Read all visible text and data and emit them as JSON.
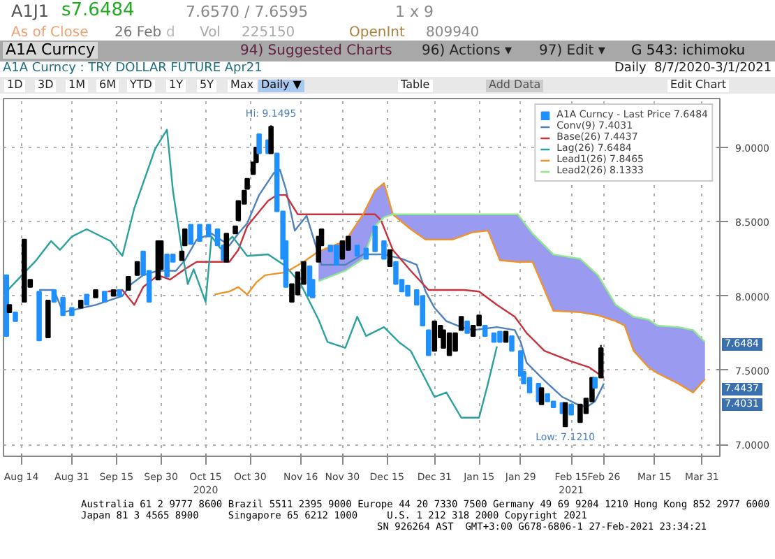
{
  "chart_data": {
    "type": "candlestick",
    "title": "A1A Curncy : TRY DOLLAR FUTURE Apr21",
    "subtitle": "Daily  8/7/2020-3/1/2021",
    "xlim": [
      "2020-08-08",
      "2021-04-06"
    ],
    "ylim": [
      6.92,
      9.33
    ],
    "xticks": [
      {
        "value": "2020-08-14",
        "label": "Aug 14"
      },
      {
        "value": "2020-08-31",
        "label": "Aug 31"
      },
      {
        "value": "2020-09-15",
        "label": "Sep 15"
      },
      {
        "value": "2020-09-30",
        "label": "Sep 30"
      },
      {
        "value": "2020-10-15",
        "label": "Oct 15\n2020"
      },
      {
        "value": "2020-10-30",
        "label": "Oct 30"
      },
      {
        "value": "2020-11-16",
        "label": "Nov 16"
      },
      {
        "value": "2020-11-30",
        "label": "Nov 30"
      },
      {
        "value": "2020-12-15",
        "label": "Dec 15"
      },
      {
        "value": "2020-12-31",
        "label": "Dec 31"
      },
      {
        "value": "2021-01-15",
        "label": "Jan 15"
      },
      {
        "value": "2021-01-29",
        "label": "Jan 29"
      },
      {
        "value": "2021-02-15",
        "label": "Feb 15\n2021"
      },
      {
        "value": "2021-02-26",
        "label": "Feb 26"
      },
      {
        "value": "2021-03-15",
        "label": "Mar 15"
      },
      {
        "value": "2021-03-31",
        "label": "Mar 31"
      }
    ],
    "yticks": [
      {
        "value": 7,
        "label": "7.0000"
      },
      {
        "value": 7.5,
        "label": "7.5000"
      },
      {
        "value": 8,
        "label": "8.0000"
      },
      {
        "value": 8.5,
        "label": "8.5000"
      },
      {
        "value": 9,
        "label": "9.0000"
      }
    ],
    "grid": true,
    "legend": "top right",
    "series": [
      {
        "type": "candlestick",
        "name": "A1A Curncy - Last Price 7.6484",
        "x": [
          "2020-08-09",
          "2020-08-10",
          "2020-08-12",
          "2020-08-15",
          "2020-08-17",
          "2020-08-20",
          "2020-08-23",
          "2020-08-25",
          "2020-08-28",
          "2020-08-31",
          "2020-09-03",
          "2020-09-05",
          "2020-09-08",
          "2020-09-11",
          "2020-09-14",
          "2020-09-16",
          "2020-09-19",
          "2020-09-22",
          "2020-09-24",
          "2020-09-26",
          "2020-09-29",
          "2020-09-30",
          "2020-10-02",
          "2020-10-04",
          "2020-10-07",
          "2020-10-08",
          "2020-10-10",
          "2020-10-13",
          "2020-10-16",
          "2020-10-19",
          "2020-10-21",
          "2020-10-22",
          "2020-10-25",
          "2020-10-26",
          "2020-10-28",
          "2020-10-29",
          "2020-10-31",
          "2020-11-01",
          "2020-11-02",
          "2020-11-05",
          "2020-11-06",
          "2020-11-08",
          "2020-11-10",
          "2020-11-11",
          "2020-11-13",
          "2020-11-15",
          "2020-11-17",
          "2020-11-19",
          "2020-11-20",
          "2020-11-22",
          "2020-11-23",
          "2020-11-26",
          "2020-11-28",
          "2020-11-30",
          "2020-12-02",
          "2020-12-05",
          "2020-12-08",
          "2020-12-11",
          "2020-12-14",
          "2020-12-16",
          "2020-12-18",
          "2020-12-20",
          "2020-12-22",
          "2020-12-25",
          "2020-12-27",
          "2020-12-29",
          "2020-12-31",
          "2021-01-02",
          "2021-01-03",
          "2021-01-05",
          "2021-01-07",
          "2021-01-09",
          "2021-01-11",
          "2021-01-13",
          "2021-01-15",
          "2021-01-17",
          "2021-01-20",
          "2021-01-22",
          "2021-01-24",
          "2021-01-26",
          "2021-01-29",
          "2021-01-30",
          "2021-02-01",
          "2021-02-04",
          "2021-02-05",
          "2021-02-07",
          "2021-02-09",
          "2021-02-12",
          "2021-02-13",
          "2021-02-15",
          "2021-02-18",
          "2021-02-20",
          "2021-02-22",
          "2021-02-23",
          "2021-02-25"
        ],
        "ohlc": [
          [
            8.14,
            8.14,
            7.73,
            7.73
          ],
          [
            7.89,
            7.94,
            7.89,
            7.94
          ],
          [
            7.89,
            7.89,
            7.83,
            7.83
          ],
          [
            7.96,
            8.38,
            7.96,
            8.38
          ],
          [
            8.06,
            8.11,
            8.06,
            8.11
          ],
          [
            8.03,
            8.03,
            7.7,
            7.7
          ],
          [
            7.72,
            7.97,
            7.72,
            7.97
          ],
          [
            8.04,
            8.04,
            7.96,
            7.96
          ],
          [
            7.99,
            7.99,
            7.87,
            7.87
          ],
          [
            7.92,
            7.92,
            7.87,
            7.87
          ],
          [
            7.92,
            7.97,
            7.92,
            7.97
          ],
          [
            8.01,
            8.01,
            7.94,
            7.94
          ],
          [
            7.99,
            8.04,
            7.99,
            8.04
          ],
          [
            8.03,
            8.03,
            7.96,
            7.96
          ],
          [
            8.0,
            8.04,
            8.0,
            8.04
          ],
          [
            8.04,
            8.04,
            8.0,
            8.0
          ],
          [
            8.04,
            8.13,
            8.04,
            8.13
          ],
          [
            8.14,
            8.23,
            8.14,
            8.23
          ],
          [
            8.3,
            8.3,
            8.14,
            8.14
          ],
          [
            8.17,
            8.17,
            7.96,
            7.96
          ],
          [
            8.11,
            8.37,
            8.11,
            8.37
          ],
          [
            8.18,
            8.37,
            8.18,
            8.37
          ],
          [
            8.28,
            8.28,
            8.13,
            8.13
          ],
          [
            8.28,
            8.28,
            8.23,
            8.23
          ],
          [
            8.24,
            8.3,
            8.24,
            8.3
          ],
          [
            8.34,
            8.45,
            8.34,
            8.45
          ],
          [
            8.48,
            8.48,
            8.35,
            8.35
          ],
          [
            8.48,
            8.48,
            8.37,
            8.37
          ],
          [
            8.48,
            8.48,
            8.4,
            8.4
          ],
          [
            8.45,
            8.45,
            8.34,
            8.34
          ],
          [
            8.34,
            8.34,
            8.24,
            8.24
          ],
          [
            8.23,
            8.42,
            8.23,
            8.42
          ],
          [
            8.42,
            8.47,
            8.42,
            8.47
          ],
          [
            8.51,
            8.64,
            8.51,
            8.64
          ],
          [
            8.62,
            8.71,
            8.62,
            8.71
          ],
          [
            8.72,
            8.79,
            8.72,
            8.79
          ],
          [
            8.82,
            8.9,
            8.82,
            8.9
          ],
          [
            8.9,
            9.0,
            8.9,
            9.0
          ],
          [
            9.09,
            9.09,
            8.96,
            8.96
          ],
          [
            9.05,
            9.05,
            8.96,
            8.96
          ],
          [
            8.96,
            9.1495,
            8.96,
            9.14
          ],
          [
            8.96,
            8.96,
            8.57,
            8.57
          ],
          [
            8.57,
            8.57,
            8.25,
            8.25
          ],
          [
            8.37,
            8.37,
            8.06,
            8.06
          ],
          [
            7.96,
            8.08,
            7.96,
            8.08
          ],
          [
            8.01,
            8.16,
            8.01,
            8.16
          ],
          [
            8.08,
            8.23,
            8.08,
            8.23
          ],
          [
            8.2,
            8.2,
            8.0,
            8.0
          ],
          [
            8.11,
            8.11,
            7.99,
            7.99
          ],
          [
            8.23,
            8.4,
            8.23,
            8.4
          ],
          [
            8.34,
            8.45,
            8.34,
            8.45
          ],
          [
            8.34,
            8.34,
            8.3,
            8.3
          ],
          [
            8.34,
            8.34,
            8.21,
            8.21
          ],
          [
            8.25,
            8.37,
            8.25,
            8.37
          ],
          [
            8.31,
            8.4,
            8.31,
            8.4
          ],
          [
            8.34,
            8.34,
            8.27,
            8.27
          ],
          [
            8.32,
            8.32,
            8.25,
            8.25
          ],
          [
            8.47,
            8.47,
            8.3,
            8.3
          ],
          [
            8.37,
            8.37,
            8.25,
            8.25
          ],
          [
            8.2,
            8.31,
            8.2,
            8.31
          ],
          [
            8.23,
            8.23,
            8.08,
            8.08
          ],
          [
            8.11,
            8.11,
            8.03,
            8.03
          ],
          [
            8.07,
            8.07,
            8.0,
            8.0
          ],
          [
            8.04,
            8.04,
            7.94,
            7.94
          ],
          [
            8.0,
            8.0,
            7.8,
            7.8
          ],
          [
            7.77,
            7.77,
            7.6,
            7.6
          ],
          [
            7.63,
            7.83,
            7.63,
            7.83
          ],
          [
            7.72,
            7.8,
            7.72,
            7.8
          ],
          [
            7.65,
            7.77,
            7.65,
            7.77
          ],
          [
            7.6,
            7.75,
            7.6,
            7.75
          ],
          [
            7.63,
            7.75,
            7.63,
            7.75
          ],
          [
            7.77,
            7.86,
            7.77,
            7.86
          ],
          [
            7.83,
            7.83,
            7.75,
            7.75
          ],
          [
            7.73,
            7.8,
            7.73,
            7.8
          ],
          [
            7.8,
            7.87,
            7.8,
            7.87
          ],
          [
            7.8,
            7.8,
            7.73,
            7.73
          ],
          [
            7.75,
            7.75,
            7.69,
            7.69
          ],
          [
            7.76,
            7.76,
            7.69,
            7.69
          ],
          [
            7.69,
            7.76,
            7.69,
            7.76
          ],
          [
            7.73,
            7.73,
            7.63,
            7.63
          ],
          [
            7.63,
            7.63,
            7.46,
            7.46
          ],
          [
            7.49,
            7.49,
            7.41,
            7.41
          ],
          [
            7.45,
            7.45,
            7.35,
            7.35
          ],
          [
            7.41,
            7.41,
            7.29,
            7.29
          ],
          [
            7.27,
            7.38,
            7.27,
            7.38
          ],
          [
            7.34,
            7.34,
            7.29,
            7.29
          ],
          [
            7.29,
            7.29,
            7.25,
            7.25
          ],
          [
            7.28,
            7.28,
            7.21,
            7.21
          ],
          [
            7.121,
            7.28,
            7.121,
            7.28
          ],
          [
            7.27,
            7.27,
            7.2,
            7.2
          ],
          [
            7.15,
            7.27,
            7.15,
            7.27
          ],
          [
            7.21,
            7.31,
            7.21,
            7.31
          ],
          [
            7.29,
            7.45,
            7.29,
            7.45
          ],
          [
            7.45,
            7.45,
            7.38,
            7.38
          ],
          [
            7.45,
            7.67,
            7.45,
            7.6484
          ]
        ],
        "colors": [
          "#1e90ff",
          "#000000",
          "#1e90ff",
          "#000000",
          "#000000",
          "#1e90ff",
          "#000000",
          "#1e90ff",
          "#1e90ff",
          "#1e90ff",
          "#000000",
          "#1e90ff",
          "#000000",
          "#1e90ff",
          "#000000",
          "#1e90ff",
          "#000000",
          "#000000",
          "#1e90ff",
          "#1e90ff",
          "#000000",
          "#000000",
          "#1e90ff",
          "#1e90ff",
          "#000000",
          "#000000",
          "#1e90ff",
          "#1e90ff",
          "#1e90ff",
          "#1e90ff",
          "#1e90ff",
          "#000000",
          "#000000",
          "#000000",
          "#000000",
          "#000000",
          "#000000",
          "#000000",
          "#1e90ff",
          "#1e90ff",
          "#000000",
          "#1e90ff",
          "#1e90ff",
          "#1e90ff",
          "#000000",
          "#000000",
          "#000000",
          "#1e90ff",
          "#1e90ff",
          "#000000",
          "#000000",
          "#1e90ff",
          "#1e90ff",
          "#000000",
          "#000000",
          "#1e90ff",
          "#1e90ff",
          "#1e90ff",
          "#1e90ff",
          "#000000",
          "#1e90ff",
          "#1e90ff",
          "#1e90ff",
          "#1e90ff",
          "#1e90ff",
          "#1e90ff",
          "#000000",
          "#000000",
          "#000000",
          "#000000",
          "#000000",
          "#000000",
          "#1e90ff",
          "#000000",
          "#000000",
          "#1e90ff",
          "#1e90ff",
          "#1e90ff",
          "#000000",
          "#1e90ff",
          "#1e90ff",
          "#1e90ff",
          "#1e90ff",
          "#1e90ff",
          "#000000",
          "#1e90ff",
          "#1e90ff",
          "#1e90ff",
          "#000000",
          "#1e90ff",
          "#000000",
          "#000000",
          "#000000",
          "#1e90ff",
          "#000000"
        ]
      },
      {
        "type": "line",
        "name": "Conv(9) 7.4031",
        "color": "#4f81bd",
        "x": [
          "2020-08-20",
          "2020-08-25",
          "2020-08-28",
          "2020-09-08",
          "2020-09-17",
          "2020-09-20",
          "2020-09-24",
          "2020-09-29",
          "2020-10-05",
          "2020-10-08",
          "2020-10-12",
          "2020-10-17",
          "2020-10-23",
          "2020-10-26",
          "2020-10-29",
          "2020-11-02",
          "2020-11-07",
          "2020-11-09",
          "2020-11-11",
          "2020-11-14",
          "2020-11-18",
          "2020-11-23",
          "2020-12-01",
          "2020-12-07",
          "2020-12-14",
          "2020-12-20",
          "2020-12-25",
          "2020-12-28",
          "2020-12-31",
          "2021-01-04",
          "2021-01-09",
          "2021-01-13",
          "2021-01-21",
          "2021-01-27",
          "2021-01-29",
          "2021-01-31",
          "2021-02-06",
          "2021-02-12",
          "2021-02-17",
          "2021-02-20",
          "2021-02-23",
          "2021-02-26"
        ],
        "values": [
          8.04,
          8.04,
          7.89,
          7.94,
          8.0,
          8.08,
          8.14,
          8.17,
          8.17,
          8.24,
          8.38,
          8.42,
          8.34,
          8.42,
          8.49,
          8.68,
          8.83,
          8.85,
          8.72,
          8.44,
          8.54,
          8.21,
          8.21,
          8.28,
          8.28,
          8.25,
          8.21,
          8.03,
          7.92,
          7.83,
          7.79,
          7.77,
          7.79,
          7.77,
          7.69,
          7.55,
          7.43,
          7.32,
          7.27,
          7.25,
          7.29,
          7.41
        ]
      },
      {
        "type": "line",
        "name": "Base(26) 7.4437",
        "color": "#c8323c",
        "x": [
          "2020-09-12",
          "2020-09-17",
          "2020-09-21",
          "2020-09-24",
          "2020-09-29",
          "2020-10-03",
          "2020-10-08",
          "2020-10-12",
          "2020-10-23",
          "2020-10-26",
          "2020-10-29",
          "2020-11-05",
          "2020-11-08",
          "2020-11-11",
          "2020-11-15",
          "2020-11-22",
          "2020-12-11",
          "2020-12-13",
          "2020-12-17",
          "2020-12-23",
          "2020-12-29",
          "2021-01-10",
          "2021-01-15",
          "2021-01-21",
          "2021-01-27",
          "2021-01-31",
          "2021-02-06",
          "2021-02-15",
          "2021-02-21",
          "2021-02-26"
        ],
        "values": [
          8.03,
          8.04,
          7.94,
          8.06,
          8.14,
          8.11,
          8.18,
          8.23,
          8.23,
          8.31,
          8.47,
          8.64,
          8.68,
          8.68,
          8.55,
          8.55,
          8.55,
          8.51,
          8.31,
          8.17,
          8.04,
          8.04,
          8.03,
          7.94,
          7.86,
          7.75,
          7.63,
          7.56,
          7.52,
          7.45
        ]
      },
      {
        "type": "line",
        "name": "Lag(26) 7.6484",
        "color": "#2aa19c",
        "x": [
          "2020-08-09",
          "2020-08-19",
          "2020-08-24",
          "2020-08-27",
          "2020-08-31",
          "2020-09-05",
          "2020-09-13",
          "2020-09-17",
          "2020-09-21",
          "2020-09-28",
          "2020-10-02",
          "2020-10-04",
          "2020-10-07",
          "2020-10-09",
          "2020-10-11",
          "2020-10-15",
          "2020-10-17",
          "2020-10-20",
          "2020-10-24",
          "2020-10-29",
          "2020-11-05",
          "2020-11-11",
          "2020-11-16",
          "2020-11-22",
          "2020-11-25",
          "2020-12-01",
          "2020-12-05",
          "2020-12-08",
          "2020-12-14",
          "2020-12-19",
          "2020-12-23",
          "2020-12-31",
          "2021-01-04",
          "2021-01-09",
          "2021-01-15",
          "2021-01-18",
          "2021-01-21"
        ],
        "values": [
          8.03,
          8.24,
          8.37,
          8.31,
          8.4,
          8.45,
          8.37,
          8.27,
          8.59,
          8.99,
          9.12,
          8.71,
          8.31,
          8.08,
          8.18,
          7.96,
          8.4,
          8.32,
          8.4,
          8.27,
          8.28,
          8.2,
          8.08,
          7.84,
          7.69,
          7.65,
          7.86,
          7.73,
          7.79,
          7.69,
          7.63,
          7.32,
          7.35,
          7.18,
          7.18,
          7.41,
          7.66
        ]
      },
      {
        "type": "line",
        "name": "Lead1(26) 7.8465",
        "color": "#f0922b",
        "x": [
          "2020-10-18",
          "2020-10-23",
          "2020-10-26",
          "2020-10-29",
          "2020-11-01",
          "2020-11-04",
          "2020-11-11",
          "2020-11-17",
          "2020-11-22",
          "2020-12-01",
          "2020-12-07",
          "2020-12-11",
          "2020-12-14",
          "2020-12-17",
          "2020-12-23",
          "2020-12-28",
          "2021-01-06",
          "2021-01-13",
          "2021-01-18",
          "2021-01-22",
          "2021-01-28",
          "2021-02-02",
          "2021-02-09",
          "2021-02-18",
          "2021-02-24",
          "2021-03-02",
          "2021-03-05",
          "2021-03-08",
          "2021-03-13",
          "2021-03-16",
          "2021-03-23",
          "2021-03-28",
          "2021-04-01"
        ],
        "values": [
          8.01,
          8.03,
          8.06,
          8.01,
          8.09,
          8.14,
          8.16,
          8.23,
          8.3,
          8.37,
          8.55,
          8.71,
          8.76,
          8.55,
          8.45,
          8.38,
          8.38,
          8.43,
          8.44,
          8.24,
          8.23,
          8.23,
          7.9,
          7.89,
          7.87,
          7.83,
          7.8,
          7.63,
          7.52,
          7.48,
          7.41,
          7.35,
          7.44
        ]
      },
      {
        "type": "line",
        "name": "Lead2(26) 8.1333",
        "color": "#90e890",
        "lower": [
          8.3,
          8.37,
          8.55,
          8.71,
          8.76,
          8.55,
          8.45,
          8.38,
          8.38,
          8.43,
          8.44,
          8.24,
          8.23,
          8.23,
          7.9,
          7.89,
          7.87,
          7.83,
          7.8,
          7.63,
          7.52,
          7.48,
          7.41,
          7.35,
          7.44
        ],
        "upper": [
          8.1,
          8.17,
          8.25,
          8.47,
          8.53,
          8.55,
          8.55,
          8.55,
          8.55,
          8.55,
          8.55,
          8.55,
          8.55,
          8.42,
          8.28,
          8.25,
          8.14,
          7.94,
          7.9,
          7.86,
          7.84,
          7.8,
          7.79,
          7.77,
          7.69
        ],
        "x": [
          "2020-11-22",
          "2020-12-01",
          "2020-12-07",
          "2020-12-11",
          "2020-12-14",
          "2020-12-17",
          "2020-12-23",
          "2020-12-28",
          "2021-01-06",
          "2021-01-13",
          "2021-01-18",
          "2021-01-22",
          "2021-01-28",
          "2021-02-02",
          "2021-02-09",
          "2021-02-18",
          "2021-02-24",
          "2021-03-02",
          "2021-03-05",
          "2021-03-08",
          "2021-03-13",
          "2021-03-16",
          "2021-03-23",
          "2021-03-28",
          "2021-04-01"
        ],
        "values": [
          8.1,
          8.17,
          8.25,
          8.47,
          8.53,
          8.55,
          8.55,
          8.55,
          8.55,
          8.55,
          8.55,
          8.55,
          8.55,
          8.42,
          8.28,
          8.25,
          8.14,
          7.94,
          7.9,
          7.86,
          7.84,
          7.8,
          7.79,
          7.77,
          7.69
        ]
      }
    ],
    "annotations": [
      "A1J1",
      "s7.6484",
      "7.6570 / 7.6595",
      "1 x 9",
      "As of Close",
      "26 Feb",
      "d",
      "Vol",
      "225150",
      "OpenInt",
      "809940",
      "A1A Curncy",
      "94) Suggested Charts",
      "96) Actions ▾",
      "97) Edit ▾",
      "G 543: ichimoku",
      "1D",
      "3D",
      "1M",
      "6M",
      "YTD",
      "1Y",
      "5Y",
      "Max",
      "Daily ▼",
      "Table",
      "Add Data",
      "Edit Chart",
      "Australia 61 2 9777 8600 Brazil 5511 2395 9000 Europe 44 20 7330 7500 Germany 49 69 9204 1210 Hong Kong 852 2977 6000",
      "Japan 81 3 4565 8900     Singapore 65 6212 1000     U.S. 1 212 318 2000 Copyright 2021",
      "SN 926264 AST  GMT+3:00 G678-6806-1 27-Feb-2021 23:34:21",
      {
        "text": "Hi: 9.1495",
        "x": "2020-11-06",
        "y": 9.1495
      },
      {
        "text": "Low: 7.1210",
        "x": "2021-02-13",
        "y": 7.121
      },
      "7.6484",
      "7.4437",
      "7.4031"
    ]
  }
}
